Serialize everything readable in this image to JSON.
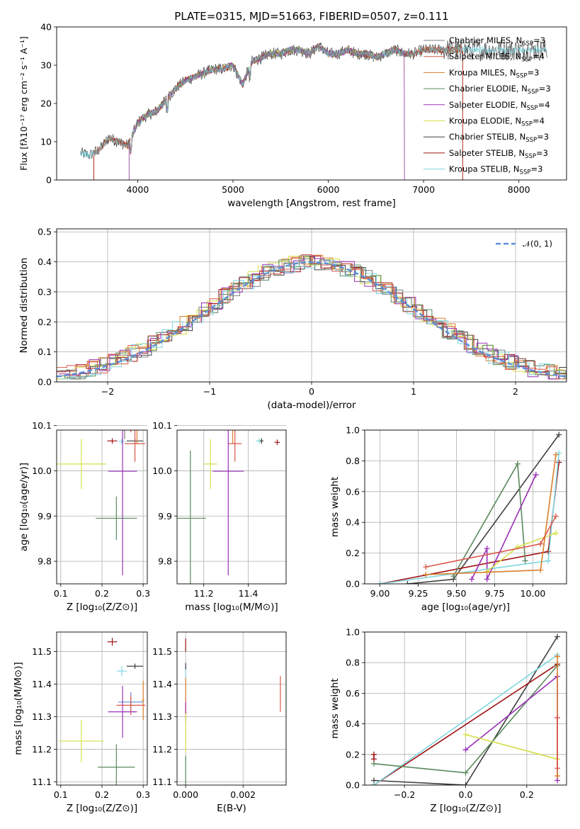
{
  "colors": {
    "chabrier_miles": "#7f7f7f",
    "salpeter_miles": "#d9584a",
    "kroupa_miles": "#d97f2b",
    "chabrier_elodie": "#5a8a5e",
    "salpeter_elodie": "#9b30b8",
    "kroupa_elodie": "#d6e04a",
    "chabrier_stelib": "#404040",
    "salpeter_stelib": "#a01010",
    "kroupa_stelib": "#7fd6e0",
    "gaussian": "#5b8fd9"
  },
  "chart_data": [
    {
      "id": "spectrum",
      "type": "line",
      "title": "PLATE=0315, MJD=51663, FIBERID=0507, z=0.111",
      "xlabel": "wavelength [Angstrom, rest frame]",
      "ylabel": "Flux [fλ10⁻¹⁷ erg cm⁻² s⁻¹ A⁻¹]",
      "xlim": [
        3150,
        8500
      ],
      "ylim": [
        0,
        40
      ],
      "xticks": [
        4000,
        5000,
        6000,
        7000,
        8000
      ],
      "yticks": [
        0,
        10,
        20,
        30,
        40
      ],
      "grid": false,
      "legend_position": "right",
      "legend": [
        {
          "name": "Chabrier MILES, N",
          "sub": "SSP",
          "tail": "=3",
          "color_key": "chabrier_miles"
        },
        {
          "name": "Salpeter MILES, N",
          "sub": "SSP",
          "tail": "=4",
          "color_key": "salpeter_miles"
        },
        {
          "name": "Kroupa MILES, N",
          "sub": "SSP",
          "tail": "=3",
          "color_key": "kroupa_miles"
        },
        {
          "name": "Chabrier ELODIE, N",
          "sub": "SSP",
          "tail": "=3",
          "color_key": "chabrier_elodie"
        },
        {
          "name": "Salpeter ELODIE, N",
          "sub": "SSP",
          "tail": "=4",
          "color_key": "salpeter_elodie"
        },
        {
          "name": "Kroupa ELODIE, N",
          "sub": "SSP",
          "tail": "=4",
          "color_key": "kroupa_elodie"
        },
        {
          "name": "Chabrier STELIB, N",
          "sub": "SSP",
          "tail": "=3",
          "color_key": "chabrier_stelib"
        },
        {
          "name": "Salpeter STELIB, N",
          "sub": "SSP",
          "tail": "=3",
          "color_key": "salpeter_stelib"
        },
        {
          "name": "Kroupa STELIB, N",
          "sub": "SSP",
          "tail": "=3",
          "color_key": "kroupa_stelib"
        }
      ],
      "data_envelope": {
        "x": [
          3400,
          3500,
          3600,
          3700,
          3800,
          3900,
          4000,
          4100,
          4200,
          4300,
          4400,
          4500,
          4600,
          4700,
          4800,
          4900,
          5000,
          5100,
          5200,
          5300,
          5400,
          5500,
          5600,
          5700,
          5800,
          5900,
          6000,
          6100,
          6200,
          6300,
          6400,
          6500,
          6600,
          6700,
          6800,
          6900,
          7000,
          7100,
          7200,
          7300,
          7400,
          7600,
          7800,
          8000,
          8200,
          8300
        ],
        "y": [
          7,
          6.5,
          8,
          11,
          10,
          9,
          15,
          17,
          18,
          21,
          24,
          26,
          27,
          28,
          29,
          29,
          30,
          25,
          31,
          32,
          33,
          33,
          34,
          34,
          33,
          35,
          33,
          33,
          34,
          33,
          33,
          32,
          33,
          34,
          33,
          33,
          34,
          34,
          34,
          34,
          34,
          34,
          34,
          34,
          34,
          34
        ]
      },
      "segments": [
        {
          "model": "chabrier_stelib",
          "x_range": [
            3400,
            8300
          ]
        },
        {
          "model": "salpeter_miles",
          "x_range": [
            3540,
            7410
          ]
        },
        {
          "model": "kroupa_miles",
          "x_range": [
            3540,
            7410
          ]
        },
        {
          "model": "kroupa_elodie",
          "x_range": [
            3910,
            6800
          ]
        },
        {
          "model": "salpeter_stelib",
          "x_range": [
            3540,
            7410
          ]
        },
        {
          "model": "chabrier_elodie",
          "x_range": [
            3910,
            6800
          ]
        },
        {
          "model": "salpeter_elodie",
          "x_range": [
            3910,
            6800
          ]
        },
        {
          "model": "kroupa_stelib",
          "x_range": [
            3400,
            8300
          ]
        },
        {
          "model": "chabrier_miles",
          "x_range": [
            3540,
            7410
          ]
        }
      ]
    },
    {
      "id": "residuals",
      "type": "line",
      "xlabel": "(data-model)/error",
      "ylabel": "Normed distribution",
      "xlim": [
        -2.5,
        2.5
      ],
      "ylim": [
        0,
        0.51
      ],
      "xticks": [
        -2,
        -1,
        0,
        1,
        2
      ],
      "xticklabels": [
        "−2",
        "−1",
        "0",
        "1",
        "2"
      ],
      "yticks": [
        0.0,
        0.1,
        0.2,
        0.3,
        0.4,
        0.5
      ],
      "yticklabels": [
        "0.0",
        "0.1",
        "0.2",
        "0.3",
        "0.4",
        "0.5"
      ],
      "grid": true,
      "legend_position": "top-right",
      "legend": [
        {
          "name": "𝒩(0, 1)",
          "color_key": "gaussian",
          "style": "dashed"
        }
      ],
      "bin_width": 0.1,
      "histograms": [
        {
          "color_key": "chabrier_stelib",
          "offset": 0.03
        },
        {
          "color_key": "kroupa_miles",
          "offset": 0.01
        },
        {
          "color_key": "salpeter_stelib",
          "offset": -0.01
        },
        {
          "color_key": "kroupa_elodie",
          "offset": -0.025
        },
        {
          "color_key": "salpeter_elodie",
          "offset": 0.02
        },
        {
          "color_key": "chabrier_elodie",
          "offset": -0.02
        },
        {
          "color_key": "kroupa_stelib",
          "offset": 0.035
        },
        {
          "color_key": "salpeter_miles",
          "offset": 0.0
        },
        {
          "color_key": "chabrier_miles",
          "offset": -0.005
        }
      ]
    },
    {
      "id": "age_vs_Z",
      "type": "scatter",
      "xlabel": "Z [log₁₀(Z/Z⊙)]",
      "ylabel": "age  [log₁₀(age/yr)]",
      "xlim": [
        0.09,
        0.31
      ],
      "ylim": [
        9.75,
        10.09
      ],
      "xticks": [
        0.1,
        0.2,
        0.3
      ],
      "xticklabels": [
        "0.1",
        "0.2",
        "0.3"
      ],
      "yticks": [
        9.8,
        9.9,
        10.0,
        10.1
      ],
      "yticklabels": [
        "9.8",
        "9.9",
        "10.0",
        "10.1"
      ],
      "grid": true,
      "points": [
        {
          "color_key": "salpeter_stelib",
          "x": 0.225,
          "y": 10.066,
          "xerr": 0.012,
          "yerr": 0.006
        },
        {
          "color_key": "kroupa_stelib",
          "x": 0.248,
          "y": 10.065,
          "xerr": 0.008,
          "yerr": 0.006
        },
        {
          "color_key": "chabrier_stelib",
          "x": 0.28,
          "y": 10.066,
          "xerr": 0.02,
          "yerr": 0.006
        },
        {
          "color_key": "kroupa_miles",
          "x": 0.285,
          "y": 10.11,
          "xerr": 0.018,
          "yerr": 0.05
        },
        {
          "color_key": "chabrier_miles",
          "x": 0.255,
          "y": 10.11,
          "xerr": 0.045,
          "yerr": 0.04
        },
        {
          "color_key": "gaussian",
          "x": 0.27,
          "y": 10.115,
          "xerr": 0.03,
          "yerr": 0.01
        },
        {
          "color_key": "salpeter_miles",
          "x": 0.27,
          "y": 10.105,
          "xerr": 0.035,
          "yerr": 0.02
        },
        {
          "color_key": "chabrier_stelib",
          "x": 0.3,
          "y": 10.105,
          "xerr": 0.003,
          "yerr": 0.01
        },
        {
          "color_key": "salpeter_miles",
          "x": 0.28,
          "y": 10.06,
          "xerr": 0.025,
          "yerr": 0.04
        },
        {
          "color_key": "kroupa_elodie",
          "x": 0.15,
          "y": 10.015,
          "xerr": 0.06,
          "yerr": 0.055
        },
        {
          "color_key": "salpeter_elodie",
          "x": 0.25,
          "y": 9.999,
          "xerr": 0.035,
          "yerr": 0.23
        },
        {
          "color_key": "chabrier_elodie",
          "x": 0.235,
          "y": 9.895,
          "xerr": 0.05,
          "yerr": 0.048
        }
      ]
    },
    {
      "id": "age_vs_mass",
      "type": "scatter",
      "xlabel": "mass [log₁₀(M/M⊙)]",
      "xlim": [
        11.08,
        11.57
      ],
      "ylim": [
        9.75,
        10.09
      ],
      "xticks": [
        11.2,
        11.4
      ],
      "xticklabels": [
        "11.2",
        "11.4"
      ],
      "yticks": [
        9.8,
        9.9,
        10.0,
        10.1
      ],
      "yticklabels": [
        "9.8",
        "9.9",
        "10.0",
        "10.1"
      ],
      "grid": true,
      "points": [
        {
          "color_key": "salpeter_stelib",
          "x": 11.53,
          "y": 10.063,
          "xerr": 0.012,
          "yerr": 0.006
        },
        {
          "color_key": "kroupa_stelib",
          "x": 11.45,
          "y": 10.066,
          "xerr": 0.015,
          "yerr": 0.006
        },
        {
          "color_key": "chabrier_stelib",
          "x": 11.46,
          "y": 10.066,
          "xerr": 0.008,
          "yerr": 0.006
        },
        {
          "color_key": "kroupa_miles",
          "x": 11.33,
          "y": 10.11,
          "xerr": 0.03,
          "yerr": 0.05
        },
        {
          "color_key": "gaussian",
          "x": 11.36,
          "y": 10.115,
          "xerr": 0.04,
          "yerr": 0.01
        },
        {
          "color_key": "salpeter_miles",
          "x": 11.34,
          "y": 10.06,
          "xerr": 0.03,
          "yerr": 0.04
        },
        {
          "color_key": "kroupa_elodie",
          "x": 11.23,
          "y": 10.015,
          "xerr": 0.03,
          "yerr": 0.055
        },
        {
          "color_key": "salpeter_elodie",
          "x": 11.31,
          "y": 9.999,
          "xerr": 0.07,
          "yerr": 0.23
        },
        {
          "color_key": "chabrier_elodie",
          "x": 11.14,
          "y": 9.895,
          "xerr": 0.07,
          "yerr": 0.15
        }
      ]
    },
    {
      "id": "mass_weight_vs_age",
      "type": "line",
      "xlabel": "age  [log₁₀(age/yr)]",
      "ylabel": "mass weight",
      "xlim": [
        8.9,
        10.22
      ],
      "ylim": [
        0,
        1
      ],
      "xticks": [
        9.0,
        9.25,
        9.5,
        9.75,
        10.0
      ],
      "xticklabels": [
        "9.00",
        "9.25",
        "9.50",
        "9.75",
        "10.00"
      ],
      "yticks": [
        0.0,
        0.2,
        0.4,
        0.6,
        0.8,
        1.0
      ],
      "yticklabels": [
        "0.0",
        "0.2",
        "0.4",
        "0.6",
        "0.8",
        "1.0"
      ],
      "grid": true,
      "series": [
        {
          "color_key": "chabrier_stelib",
          "x": [
            9.18,
            9.48,
            10.17
          ],
          "y": [
            0.0,
            0.03,
            0.97
          ]
        },
        {
          "color_key": "salpeter_stelib",
          "x": [
            9.0,
            10.1,
            10.17
          ],
          "y": [
            0.0,
            0.21,
            0.79
          ]
        },
        {
          "color_key": "kroupa_stelib",
          "x": [
            9.0,
            10.1,
            10.17
          ],
          "y": [
            0.0,
            0.15,
            0.85
          ]
        },
        {
          "color_key": "chabrier_elodie",
          "x": [
            9.48,
            9.9,
            9.95
          ],
          "y": [
            0.05,
            0.78,
            0.15
          ]
        },
        {
          "color_key": "salpeter_elodie",
          "x": [
            9.6,
            9.7,
            9.7,
            10.02
          ],
          "y": [
            0.03,
            0.23,
            0.03,
            0.71
          ]
        },
        {
          "color_key": "kroupa_elodie",
          "x": [
            9.7,
            9.9,
            10.15
          ],
          "y": [
            0.08,
            0.24,
            0.33
          ]
        },
        {
          "color_key": "kroupa_miles",
          "x": [
            9.3,
            10.05,
            10.15
          ],
          "y": [
            0.06,
            0.09,
            0.84
          ]
        },
        {
          "color_key": "salpeter_miles",
          "x": [
            9.3,
            10.05,
            10.15
          ],
          "y": [
            0.11,
            0.26,
            0.44
          ]
        }
      ]
    },
    {
      "id": "mass_vs_Z",
      "type": "scatter",
      "xlabel": "Z [log₁₀(Z/Z⊙)]",
      "ylabel": "mass [log₁₀(M/M⊙)]",
      "xlim": [
        0.09,
        0.31
      ],
      "ylim": [
        11.09,
        11.56
      ],
      "xticks": [
        0.1,
        0.2,
        0.3
      ],
      "xticklabels": [
        "0.1",
        "0.2",
        "0.3"
      ],
      "yticks": [
        11.1,
        11.2,
        11.3,
        11.4,
        11.5
      ],
      "yticklabels": [
        "11.1",
        "11.2",
        "11.3",
        "11.4",
        "11.5"
      ],
      "grid": true,
      "points": [
        {
          "color_key": "salpeter_stelib",
          "x": 0.225,
          "y": 11.53,
          "xerr": 0.012,
          "yerr": 0.012
        },
        {
          "color_key": "kroupa_stelib",
          "x": 0.248,
          "y": 11.44,
          "xerr": 0.012,
          "yerr": 0.015
        },
        {
          "color_key": "chabrier_stelib",
          "x": 0.28,
          "y": 11.455,
          "xerr": 0.02,
          "yerr": 0.008
        },
        {
          "color_key": "kroupa_miles",
          "x": 0.3,
          "y": 11.35,
          "xerr": 0.003,
          "yerr": 0.06
        },
        {
          "color_key": "gaussian",
          "x": 0.27,
          "y": 11.345,
          "xerr": 0.03,
          "yerr": 0.03
        },
        {
          "color_key": "salpeter_miles",
          "x": 0.27,
          "y": 11.335,
          "xerr": 0.035,
          "yerr": 0.03
        },
        {
          "color_key": "salpeter_elodie",
          "x": 0.25,
          "y": 11.315,
          "xerr": 0.035,
          "yerr": 0.08
        },
        {
          "color_key": "kroupa_elodie",
          "x": 0.15,
          "y": 11.225,
          "xerr": 0.055,
          "yerr": 0.065
        },
        {
          "color_key": "chabrier_elodie",
          "x": 0.235,
          "y": 11.145,
          "xerr": 0.045,
          "yerr": 0.07
        }
      ]
    },
    {
      "id": "mass_vs_ebv",
      "type": "scatter",
      "xlabel": "E(B-V)",
      "xlim": [
        -0.0003,
        0.0035
      ],
      "ylim": [
        11.09,
        11.56
      ],
      "xticks": [
        0.0,
        0.002
      ],
      "xticklabels": [
        "0.000",
        "0.002"
      ],
      "yticks": [
        11.1,
        11.2,
        11.3,
        11.4,
        11.5
      ],
      "yticklabels": [
        "11.1",
        "11.2",
        "11.3",
        "11.4",
        "11.5"
      ],
      "grid": true,
      "points": [
        {
          "color_key": "salpeter_stelib",
          "x": 0.0,
          "y": 11.52,
          "xerr": 0.0,
          "yerr": 0.02
        },
        {
          "color_key": "kroupa_stelib",
          "x": 0.0,
          "y": 11.44,
          "xerr": 0.0,
          "yerr": 0.02
        },
        {
          "color_key": "chabrier_stelib",
          "x": 0.0,
          "y": 11.455,
          "xerr": 0.0,
          "yerr": 0.01
        },
        {
          "color_key": "kroupa_miles",
          "x": 0.0,
          "y": 11.36,
          "xerr": 0.0,
          "yerr": 0.06
        },
        {
          "color_key": "salpeter_elodie",
          "x": 0.0,
          "y": 11.315,
          "xerr": 0.0,
          "yerr": 0.03
        },
        {
          "color_key": "kroupa_elodie",
          "x": 0.0,
          "y": 11.25,
          "xerr": 0.0,
          "yerr": 0.06
        },
        {
          "color_key": "chabrier_elodie",
          "x": 0.0,
          "y": 11.13,
          "xerr": 0.0,
          "yerr": 0.05
        },
        {
          "color_key": "salpeter_miles",
          "x": 0.0033,
          "y": 11.37,
          "xerr": 0.0,
          "yerr": 0.055
        }
      ]
    },
    {
      "id": "mass_weight_vs_Z",
      "type": "line",
      "xlabel": "Z [log₁₀(Z/Z⊙)]",
      "ylabel": "mass weight",
      "xlim": [
        -0.33,
        0.33
      ],
      "ylim": [
        0,
        1
      ],
      "xticks": [
        -0.2,
        0.0,
        0.2
      ],
      "xticklabels": [
        "−0.2",
        "0.0",
        "0.2"
      ],
      "yticks": [
        0.0,
        0.2,
        0.4,
        0.6,
        0.8,
        1.0
      ],
      "yticklabels": [
        "0.0",
        "0.2",
        "0.4",
        "0.6",
        "0.8",
        "1.0"
      ],
      "grid": true,
      "series": [
        {
          "color_key": "chabrier_stelib",
          "x": [
            -0.3,
            0.0,
            0.3
          ],
          "y": [
            0.03,
            0.0,
            0.97
          ]
        },
        {
          "color_key": "salpeter_stelib",
          "x": [
            -0.3,
            0.3
          ],
          "y": [
            0.0,
            0.79
          ]
        },
        {
          "color_key": "kroupa_stelib",
          "x": [
            -0.3,
            0.3
          ],
          "y": [
            0.0,
            0.85
          ]
        },
        {
          "color_key": "chabrier_elodie",
          "x": [
            -0.3,
            0.0,
            0.3
          ],
          "y": [
            0.14,
            0.08,
            0.78
          ]
        },
        {
          "color_key": "salpeter_elodie",
          "x": [
            0.0,
            0.3,
            0.3
          ],
          "y": [
            0.23,
            0.71,
            0.03
          ]
        },
        {
          "color_key": "kroupa_elodie",
          "x": [
            0.0,
            0.3
          ],
          "y": [
            0.33,
            0.17
          ]
        },
        {
          "color_key": "kroupa_miles",
          "x": [
            0.3,
            0.3
          ],
          "y": [
            0.06,
            0.84
          ]
        },
        {
          "color_key": "salpeter_miles",
          "x": [
            0.3,
            0.3
          ],
          "y": [
            0.11,
            0.44
          ]
        },
        {
          "color_key": "salpeter_stelib",
          "x": [
            -0.3,
            -0.3
          ],
          "y": [
            0.2,
            0.17
          ]
        }
      ]
    }
  ]
}
